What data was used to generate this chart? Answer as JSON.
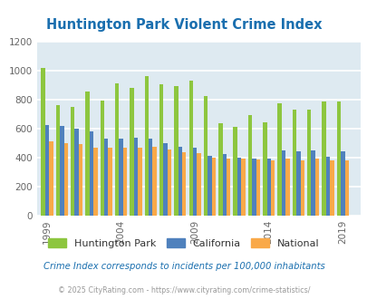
{
  "title": "Huntington Park Violent Crime Index",
  "title_color": "#1a6faf",
  "years": [
    1999,
    2000,
    2001,
    2002,
    2003,
    2004,
    2005,
    2006,
    2007,
    2008,
    2009,
    2010,
    2011,
    2012,
    2013,
    2014,
    2015,
    2016,
    2017,
    2018,
    2019
  ],
  "huntington_park": [
    1020,
    760,
    750,
    855,
    795,
    910,
    880,
    965,
    905,
    895,
    930,
    825,
    635,
    610,
    695,
    645,
    775,
    730,
    730,
    790,
    790
  ],
  "california": [
    625,
    620,
    600,
    580,
    530,
    530,
    535,
    530,
    500,
    475,
    470,
    410,
    425,
    400,
    395,
    395,
    450,
    445,
    450,
    405,
    445
  ],
  "national": [
    510,
    500,
    495,
    470,
    465,
    470,
    465,
    475,
    455,
    435,
    430,
    400,
    390,
    390,
    385,
    380,
    395,
    380,
    395,
    380,
    380
  ],
  "xlim": [
    1998.3,
    2020.2
  ],
  "ylim": [
    0,
    1200
  ],
  "yticks": [
    0,
    200,
    400,
    600,
    800,
    1000,
    1200
  ],
  "xtick_years": [
    1999,
    2004,
    2009,
    2014,
    2019
  ],
  "bar_width": 0.27,
  "color_hp": "#8dc63f",
  "color_ca": "#4f81bd",
  "color_na": "#f9a949",
  "bg_color": "#deeaf1",
  "grid_color": "#ffffff",
  "subtitle": "Crime Index corresponds to incidents per 100,000 inhabitants",
  "footer": "© 2025 CityRating.com - https://www.cityrating.com/crime-statistics/",
  "subtitle_color": "#1a6faf",
  "footer_color": "#999999",
  "legend_labels": [
    "Huntington Park",
    "California",
    "National"
  ]
}
